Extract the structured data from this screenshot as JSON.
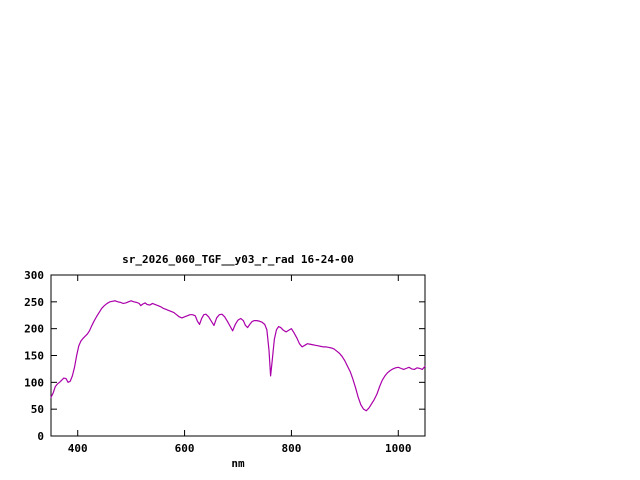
{
  "chart_data": {
    "type": "line",
    "title": "sr_2026_060_TGF__y03_r_rad 16-24-00",
    "xlabel": "nm",
    "ylabel": "",
    "xlim": [
      350,
      1050
    ],
    "ylim": [
      0,
      300
    ],
    "xticks": [
      400,
      600,
      800,
      1000
    ],
    "yticks": [
      0,
      50,
      100,
      150,
      200,
      250,
      300
    ],
    "grid": false,
    "legend_position": "none",
    "line_color": "#aa00aa",
    "axis_color": "#000000",
    "series": [
      {
        "name": "sr_2026_060_TGF__y03_r_rad",
        "color": "#aa00aa",
        "points": [
          [
            350,
            72
          ],
          [
            354,
            80
          ],
          [
            358,
            92
          ],
          [
            362,
            97
          ],
          [
            366,
            100
          ],
          [
            370,
            104
          ],
          [
            374,
            108
          ],
          [
            378,
            107
          ],
          [
            382,
            100
          ],
          [
            386,
            102
          ],
          [
            390,
            112
          ],
          [
            394,
            128
          ],
          [
            398,
            150
          ],
          [
            402,
            168
          ],
          [
            406,
            177
          ],
          [
            410,
            182
          ],
          [
            414,
            186
          ],
          [
            418,
            190
          ],
          [
            422,
            196
          ],
          [
            426,
            205
          ],
          [
            430,
            213
          ],
          [
            435,
            222
          ],
          [
            440,
            230
          ],
          [
            445,
            238
          ],
          [
            450,
            243
          ],
          [
            455,
            247
          ],
          [
            460,
            250
          ],
          [
            465,
            251
          ],
          [
            470,
            252
          ],
          [
            475,
            250
          ],
          [
            480,
            249
          ],
          [
            485,
            247
          ],
          [
            490,
            248
          ],
          [
            495,
            250
          ],
          [
            500,
            252
          ],
          [
            505,
            250
          ],
          [
            510,
            249
          ],
          [
            515,
            247
          ],
          [
            518,
            243
          ],
          [
            522,
            246
          ],
          [
            526,
            248
          ],
          [
            530,
            245
          ],
          [
            535,
            244
          ],
          [
            540,
            247
          ],
          [
            545,
            245
          ],
          [
            550,
            243
          ],
          [
            555,
            241
          ],
          [
            560,
            238
          ],
          [
            565,
            236
          ],
          [
            570,
            234
          ],
          [
            575,
            232
          ],
          [
            580,
            230
          ],
          [
            585,
            226
          ],
          [
            590,
            222
          ],
          [
            595,
            220
          ],
          [
            600,
            222
          ],
          [
            605,
            224
          ],
          [
            610,
            226
          ],
          [
            615,
            226
          ],
          [
            620,
            224
          ],
          [
            624,
            214
          ],
          [
            628,
            208
          ],
          [
            632,
            219
          ],
          [
            636,
            226
          ],
          [
            640,
            227
          ],
          [
            645,
            222
          ],
          [
            650,
            214
          ],
          [
            655,
            206
          ],
          [
            660,
            220
          ],
          [
            665,
            226
          ],
          [
            670,
            227
          ],
          [
            675,
            222
          ],
          [
            680,
            214
          ],
          [
            685,
            205
          ],
          [
            690,
            196
          ],
          [
            695,
            208
          ],
          [
            700,
            216
          ],
          [
            705,
            219
          ],
          [
            710,
            215
          ],
          [
            714,
            206
          ],
          [
            718,
            202
          ],
          [
            722,
            208
          ],
          [
            726,
            213
          ],
          [
            730,
            215
          ],
          [
            735,
            215
          ],
          [
            740,
            214
          ],
          [
            745,
            212
          ],
          [
            750,
            208
          ],
          [
            754,
            198
          ],
          [
            758,
            160
          ],
          [
            761,
            112
          ],
          [
            764,
            140
          ],
          [
            768,
            180
          ],
          [
            772,
            198
          ],
          [
            776,
            204
          ],
          [
            780,
            202
          ],
          [
            785,
            197
          ],
          [
            790,
            194
          ],
          [
            795,
            197
          ],
          [
            800,
            200
          ],
          [
            805,
            192
          ],
          [
            810,
            183
          ],
          [
            815,
            172
          ],
          [
            820,
            166
          ],
          [
            825,
            169
          ],
          [
            830,
            172
          ],
          [
            835,
            171
          ],
          [
            840,
            170
          ],
          [
            845,
            169
          ],
          [
            850,
            168
          ],
          [
            855,
            167
          ],
          [
            860,
            166
          ],
          [
            865,
            166
          ],
          [
            870,
            165
          ],
          [
            875,
            164
          ],
          [
            880,
            162
          ],
          [
            885,
            158
          ],
          [
            890,
            154
          ],
          [
            895,
            148
          ],
          [
            900,
            140
          ],
          [
            905,
            130
          ],
          [
            910,
            120
          ],
          [
            915,
            106
          ],
          [
            920,
            90
          ],
          [
            925,
            72
          ],
          [
            930,
            58
          ],
          [
            935,
            50
          ],
          [
            940,
            47
          ],
          [
            945,
            52
          ],
          [
            950,
            60
          ],
          [
            955,
            68
          ],
          [
            960,
            78
          ],
          [
            965,
            92
          ],
          [
            970,
            104
          ],
          [
            975,
            112
          ],
          [
            980,
            118
          ],
          [
            985,
            122
          ],
          [
            990,
            125
          ],
          [
            995,
            127
          ],
          [
            1000,
            128
          ],
          [
            1005,
            126
          ],
          [
            1010,
            124
          ],
          [
            1015,
            126
          ],
          [
            1020,
            128
          ],
          [
            1025,
            125
          ],
          [
            1030,
            124
          ],
          [
            1035,
            127
          ],
          [
            1040,
            126
          ],
          [
            1045,
            124
          ],
          [
            1050,
            130
          ]
        ]
      }
    ]
  }
}
